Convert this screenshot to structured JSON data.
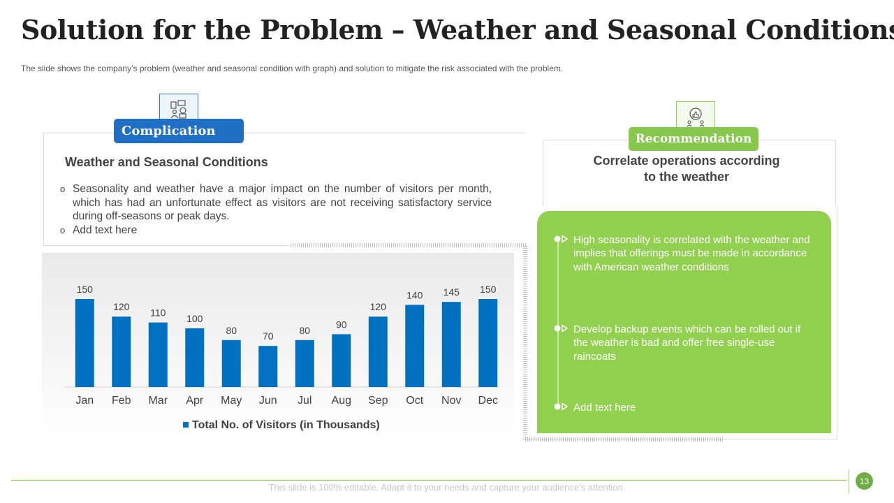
{
  "slide": {
    "title": "Solution for the Problem – Weather and Seasonal Conditions",
    "subtitle": "The slide shows the company’s problem (weather and seasonal condition with graph) and solution to mitigate the risk associated with the problem.",
    "page_number": "13",
    "footer": "This slide is 100% editable. Adapt it to your needs and capture your audience’s attention."
  },
  "complication": {
    "label": "Complication",
    "icon": "analytics-icon",
    "heading": "Weather and Seasonal Conditions",
    "bullets": [
      "Seasonality and weather have a major impact on the number of visitors per month, which has had an unfortunate effect as visitors are not receiving satisfactory service during off-seasons or peak days.",
      "Add text here"
    ]
  },
  "recommendation": {
    "label": "Recommendation",
    "icon": "thumbs-up-meeting-icon",
    "heading": "Correlate operations according to the weather",
    "items": [
      "High seasonality is correlated with the weather and implies that offerings must be made in accordance with American weather conditions",
      "Develop backup events which can be rolled out if the weather is bad and offer free single-use raincoats",
      "Add text here"
    ]
  },
  "colors": {
    "bar": "#0070c0",
    "accent_green": "#92d050",
    "accent_blue": "#1f6fc4"
  },
  "chart_data": {
    "type": "bar",
    "categories": [
      "Jan",
      "Feb",
      "Mar",
      "Apr",
      "May",
      "Jun",
      "Jul",
      "Aug",
      "Sep",
      "Oct",
      "Nov",
      "Dec"
    ],
    "series": [
      {
        "name": "Total No. of Visitors (in Thousands)",
        "values": [
          150,
          120,
          110,
          100,
          80,
          70,
          80,
          90,
          120,
          140,
          145,
          150
        ]
      }
    ],
    "title": "",
    "xlabel": "",
    "ylabel": "",
    "ylim": [
      0,
      150
    ],
    "grid": false,
    "legend": "bottom",
    "data_labels": true
  }
}
